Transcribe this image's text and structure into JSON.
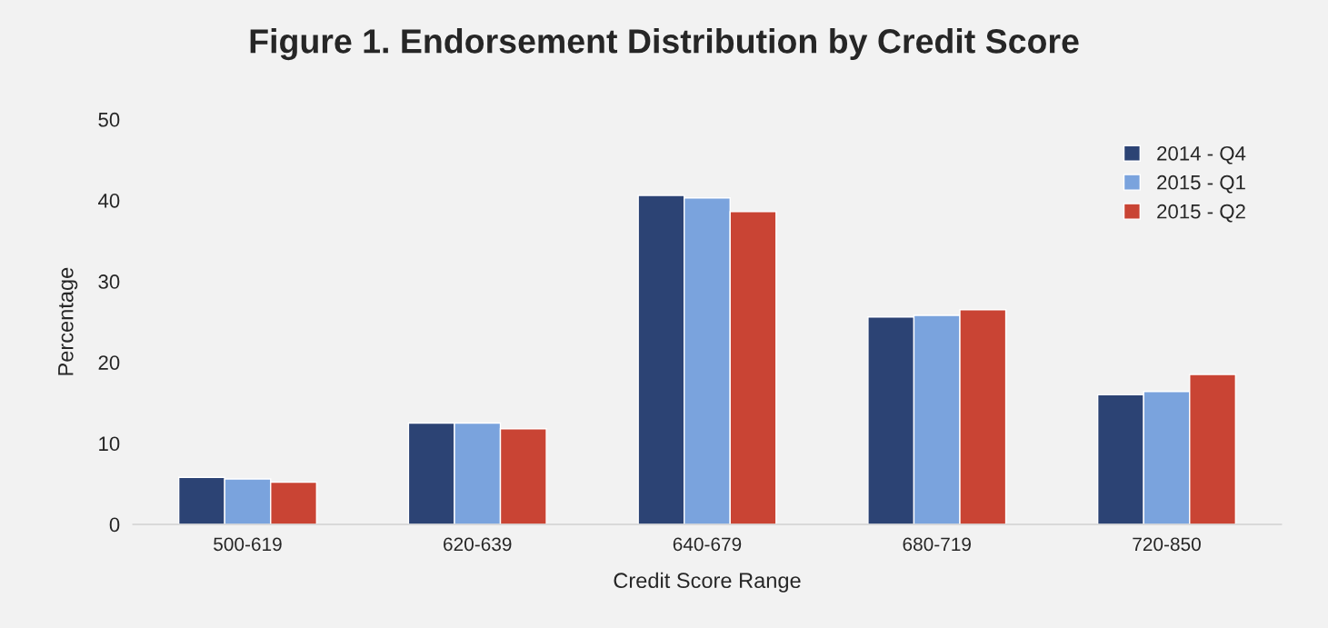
{
  "chart_data": {
    "type": "bar",
    "title": "Figure 1. Endorsement Distribution by Credit Score",
    "xlabel": "Credit Score Range",
    "ylabel": "Percentage",
    "categories": [
      "500-619",
      "620-639",
      "640-679",
      "680-719",
      "720-850"
    ],
    "series": [
      {
        "name": "2014 - Q4",
        "color": "#2c4374",
        "values": [
          5.8,
          12.5,
          40.6,
          25.6,
          16.0
        ]
      },
      {
        "name": "2015 - Q1",
        "color": "#7aa3dd",
        "values": [
          5.6,
          12.5,
          40.3,
          25.8,
          16.4
        ]
      },
      {
        "name": "2015 - Q2",
        "color": "#c94434",
        "values": [
          5.2,
          11.8,
          38.6,
          26.5,
          18.5
        ]
      }
    ],
    "ylim": [
      0,
      50
    ],
    "yticks": [
      0,
      10,
      20,
      30,
      40,
      50
    ],
    "grid": false,
    "legend": "top right"
  }
}
